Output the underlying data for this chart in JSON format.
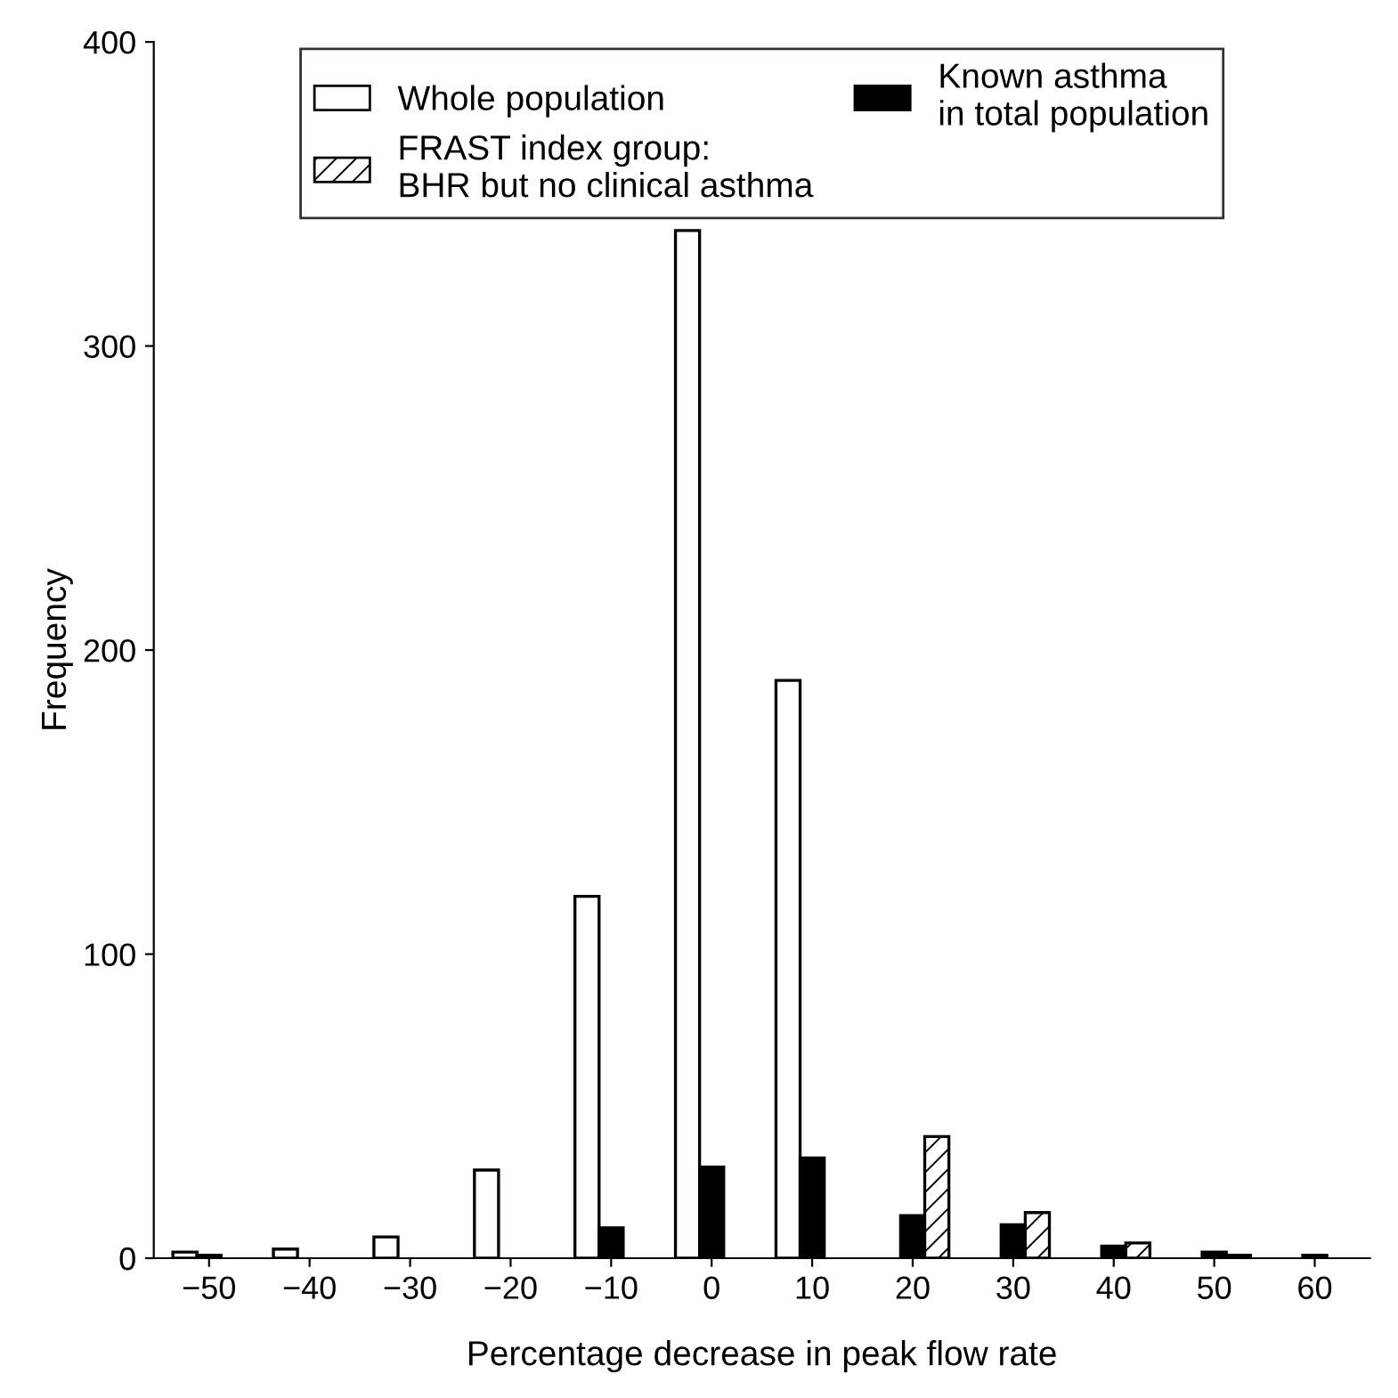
{
  "chart_data": {
    "type": "bar",
    "xlabel": "Percentage decrease in peak flow rate",
    "ylabel": "Frequency",
    "categories": [
      "−50",
      "−40",
      "−30",
      "−20",
      "−10",
      "0",
      "10",
      "20",
      "30",
      "40",
      "50",
      "60"
    ],
    "series": [
      {
        "name": "Whole population",
        "color": "#ffffff",
        "values": [
          2,
          3,
          7,
          29,
          119,
          338,
          190,
          null,
          null,
          null,
          null,
          null
        ]
      },
      {
        "name": "Known asthma\nin total population",
        "color": "#000000",
        "values": [
          1,
          null,
          null,
          null,
          10,
          30,
          33,
          14,
          11,
          4,
          2,
          1
        ]
      },
      {
        "name": "FRAST index group:\nBHR but no clinical asthma",
        "color": "#000000",
        "values": [
          null,
          null,
          null,
          null,
          null,
          null,
          null,
          40,
          15,
          5,
          1,
          null
        ]
      }
    ],
    "ylim": [
      0,
      400
    ],
    "yticks": [
      0,
      100,
      200,
      300,
      400
    ],
    "grid": false,
    "legend": "top"
  }
}
